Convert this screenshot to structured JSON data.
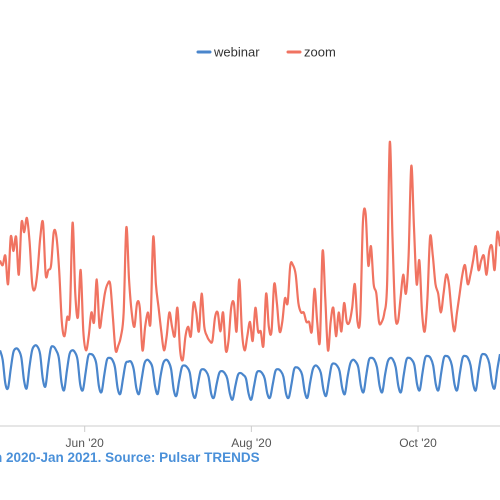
{
  "caption": "n 2020-Jan 2021. Source: Pulsar TRENDS",
  "colors": {
    "webinar": "#4a86cc",
    "zoom": "#f07361",
    "axis": "#cccccc",
    "caption": "#4a90d9"
  },
  "chart_data": {
    "type": "line",
    "title": "",
    "xlabel": "",
    "ylabel": "",
    "legend": {
      "position": "top-center",
      "entries": [
        "webinar",
        "zoom"
      ]
    },
    "grid": false,
    "x_start": "2020-05-01",
    "x_end": "2020-10-31",
    "x_ticks": [
      {
        "date": "2020-06-01",
        "label": "Jun '20"
      },
      {
        "date": "2020-08-01",
        "label": "Aug '20"
      },
      {
        "date": "2020-10-01",
        "label": "Oct '20"
      }
    ],
    "ylim": [
      0,
      350
    ],
    "series": [
      {
        "name": "webinar",
        "values": [
          80,
          70,
          45,
          40,
          60,
          78,
          82,
          80,
          72,
          48,
          40,
          62,
          80,
          85,
          84,
          76,
          50,
          42,
          64,
          82,
          84,
          80,
          72,
          46,
          38,
          58,
          76,
          80,
          78,
          70,
          44,
          38,
          56,
          74,
          76,
          74,
          66,
          42,
          36,
          54,
          70,
          72,
          70,
          62,
          40,
          34,
          50,
          66,
          68,
          68,
          60,
          40,
          34,
          50,
          66,
          70,
          68,
          62,
          42,
          34,
          52,
          66,
          70,
          68,
          60,
          38,
          32,
          48,
          62,
          64,
          62,
          56,
          36,
          30,
          44,
          58,
          60,
          58,
          52,
          34,
          30,
          44,
          56,
          58,
          56,
          50,
          34,
          28,
          42,
          54,
          56,
          54,
          50,
          34,
          28,
          42,
          56,
          58,
          56,
          50,
          34,
          30,
          44,
          58,
          60,
          58,
          52,
          34,
          30,
          44,
          60,
          62,
          60,
          54,
          36,
          30,
          46,
          60,
          64,
          62,
          56,
          38,
          32,
          48,
          64,
          66,
          64,
          58,
          40,
          34,
          52,
          66,
          70,
          68,
          62,
          42,
          36,
          54,
          70,
          72,
          70,
          62,
          42,
          36,
          54,
          68,
          72,
          70,
          62,
          42,
          36,
          54,
          70,
          72,
          70,
          64,
          44,
          38,
          56,
          72,
          74,
          72,
          64,
          44,
          38,
          56,
          72,
          74,
          72,
          64,
          44,
          38,
          56,
          72,
          74,
          72,
          64,
          44,
          38,
          58,
          74,
          76,
          74,
          66,
          46,
          40,
          60,
          76
        ]
      },
      {
        "name": "zoom",
        "values": [
          175,
          170,
          180,
          150,
          200,
          185,
          200,
          160,
          215,
          205,
          220,
          195,
          150,
          145,
          165,
          200,
          215,
          160,
          165,
          170,
          205,
          200,
          165,
          110,
          95,
          115,
          120,
          215,
          140,
          115,
          165,
          100,
          80,
          95,
          120,
          110,
          155,
          105,
          120,
          140,
          150,
          150,
          115,
          80,
          85,
          95,
          120,
          210,
          155,
          120,
          105,
          130,
          125,
          80,
          105,
          120,
          110,
          200,
          150,
          125,
          100,
          80,
          95,
          120,
          105,
          95,
          125,
          80,
          70,
          95,
          105,
          95,
          130,
          120,
          100,
          140,
          105,
          95,
          90,
          90,
          115,
          120,
          100,
          120,
          80,
          90,
          125,
          130,
          100,
          155,
          100,
          80,
          95,
          110,
          90,
          125,
          100,
          100,
          85,
          140,
          105,
          100,
          150,
          130,
          100,
          110,
          135,
          130,
          170,
          170,
          160,
          130,
          120,
          120,
          110,
          110,
          100,
          145,
          110,
          90,
          185,
          135,
          80,
          110,
          125,
          95,
          120,
          100,
          130,
          110,
          110,
          125,
          150,
          110,
          115,
          215,
          225,
          170,
          190,
          150,
          140,
          110,
          110,
          120,
          150,
          300,
          200,
          120,
          110,
          135,
          160,
          140,
          180,
          275,
          210,
          150,
          175,
          120,
          100,
          135,
          200,
          180,
          150,
          140,
          120,
          140,
          160,
          150,
          120,
          100,
          120,
          140,
          160,
          170,
          150,
          160,
          175,
          190,
          165,
          175,
          180,
          160,
          185,
          190,
          165,
          205,
          190
        ]
      }
    ]
  }
}
